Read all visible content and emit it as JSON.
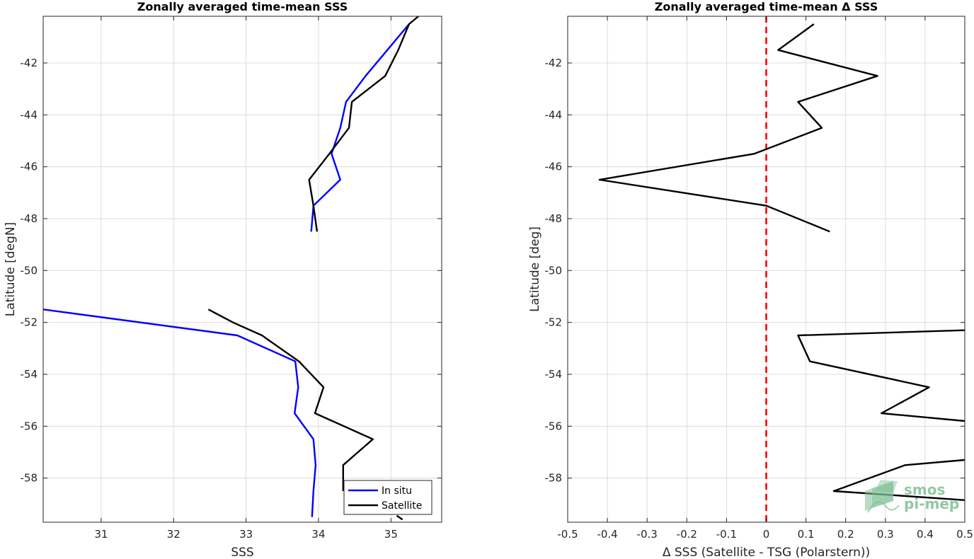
{
  "chart_data": [
    {
      "type": "line",
      "title": "Zonally averaged time-mean SSS",
      "xlabel": "SSS",
      "ylabel": "Latitude [degN]",
      "xlim": [
        30.2,
        35.7
      ],
      "ylim": [
        -59.7,
        -40.2
      ],
      "xticks": [
        31,
        32,
        33,
        34,
        35
      ],
      "xtick_labels": [
        "31",
        "32",
        "33",
        "34",
        "35"
      ],
      "yticks": [
        -42,
        -44,
        -46,
        -48,
        -50,
        -52,
        -54,
        -56,
        -58
      ],
      "ytick_labels": [
        "-42",
        "-44",
        "-46",
        "-48",
        "-50",
        "-52",
        "-54",
        "-56",
        "-58"
      ],
      "grid": true,
      "legend_location": "bottom-right",
      "series": [
        {
          "name": "In situ",
          "color": "#0000ff",
          "segments": [
            [
              [
                35.25,
                -40.5
              ],
              [
                34.95,
                -41.5
              ],
              [
                34.65,
                -42.5
              ],
              [
                34.38,
                -43.5
              ],
              [
                34.3,
                -44.5
              ],
              [
                34.18,
                -45.5
              ],
              [
                34.3,
                -46.5
              ],
              [
                33.93,
                -47.5
              ],
              [
                33.9,
                -48.5
              ]
            ],
            [
              [
                30.2,
                -51.5
              ],
              [
                32.88,
                -52.5
              ],
              [
                33.68,
                -53.5
              ],
              [
                33.72,
                -54.5
              ],
              [
                33.67,
                -55.5
              ],
              [
                33.93,
                -56.5
              ],
              [
                33.96,
                -57.5
              ],
              [
                33.93,
                -58.5
              ],
              [
                33.91,
                -59.5
              ]
            ]
          ]
        },
        {
          "name": "Satellite",
          "color": "#000000",
          "segments": [
            [
              [
                35.38,
                -40.2
              ],
              [
                35.25,
                -40.5
              ],
              [
                35.1,
                -41.5
              ],
              [
                34.92,
                -42.5
              ],
              [
                34.46,
                -43.5
              ],
              [
                34.42,
                -44.5
              ],
              [
                34.15,
                -45.5
              ],
              [
                33.87,
                -46.5
              ],
              [
                33.93,
                -47.5
              ],
              [
                33.98,
                -48.5
              ]
            ],
            [
              [
                32.48,
                -51.5
              ],
              [
                32.82,
                -52.0
              ],
              [
                33.22,
                -52.5
              ],
              [
                33.73,
                -53.5
              ],
              [
                34.07,
                -54.5
              ],
              [
                33.95,
                -55.5
              ],
              [
                34.75,
                -56.5
              ],
              [
                34.34,
                -57.5
              ],
              [
                34.34,
                -58.5
              ]
            ],
            [
              [
                35.08,
                -59.45
              ],
              [
                35.16,
                -59.6
              ]
            ]
          ]
        }
      ]
    },
    {
      "type": "line",
      "title": "Zonally averaged time-mean Δ SSS",
      "xlabel": "Δ SSS (Satellite - TSG (Polarstern))",
      "ylabel": "Latitude [deg]",
      "xlim": [
        -0.5,
        0.5
      ],
      "ylim": [
        -59.7,
        -40.2
      ],
      "xticks": [
        -0.5,
        -0.4,
        -0.3,
        -0.2,
        -0.1,
        0,
        0.1,
        0.2,
        0.3,
        0.4,
        0.5
      ],
      "xtick_labels": [
        "-0.5",
        "-0.4",
        "-0.3",
        "-0.2",
        "-0.1",
        "0",
        "0.1",
        "0.2",
        "0.3",
        "0.4",
        "0.5"
      ],
      "yticks": [
        -42,
        -44,
        -46,
        -48,
        -50,
        -52,
        -54,
        -56,
        -58
      ],
      "ytick_labels": [
        "-42",
        "-44",
        "-46",
        "-48",
        "-50",
        "-52",
        "-54",
        "-56",
        "-58"
      ],
      "grid": true,
      "reference_line": {
        "x": 0,
        "color": "#ff0000",
        "style": "dashed"
      },
      "series": [
        {
          "color": "#000000",
          "segments": [
            [
              [
                0.12,
                -40.5
              ],
              [
                0.03,
                -41.5
              ],
              [
                0.28,
                -42.5
              ],
              [
                0.08,
                -43.5
              ],
              [
                0.14,
                -44.5
              ],
              [
                -0.03,
                -45.5
              ],
              [
                -0.42,
                -46.5
              ],
              [
                0.0,
                -47.5
              ],
              [
                0.16,
                -48.5
              ]
            ],
            [
              [
                0.5,
                -52.3
              ],
              [
                0.08,
                -52.5
              ],
              [
                0.11,
                -53.5
              ],
              [
                0.41,
                -54.5
              ],
              [
                0.29,
                -55.5
              ],
              [
                0.5,
                -55.8
              ]
            ],
            [
              [
                0.5,
                -57.3
              ],
              [
                0.35,
                -57.5
              ],
              [
                0.17,
                -58.5
              ],
              [
                0.5,
                -58.85
              ]
            ]
          ]
        }
      ]
    }
  ],
  "watermark": {
    "line1": "smos",
    "line2": "pi-mep",
    "color": "#7fbf95"
  }
}
